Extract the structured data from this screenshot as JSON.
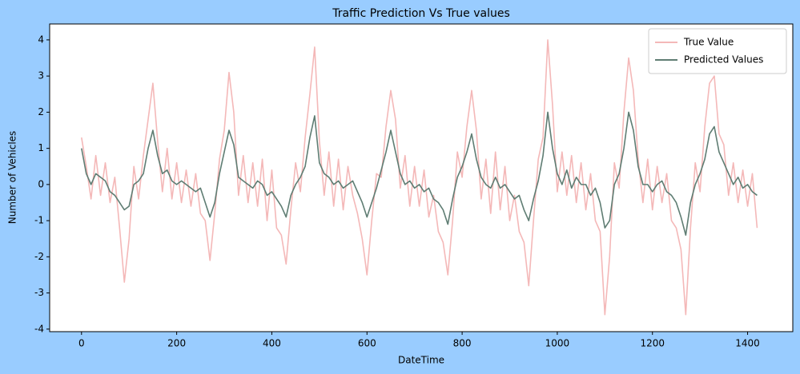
{
  "chart_data": {
    "type": "line",
    "title": "Traffic Prediction Vs True values",
    "x_label": "DateTime",
    "y_label": "Number of Vehicles",
    "x": [
      0,
      10,
      20,
      30,
      40,
      50,
      60,
      70,
      80,
      90,
      100,
      110,
      120,
      130,
      140,
      150,
      160,
      170,
      180,
      190,
      200,
      210,
      220,
      230,
      240,
      250,
      260,
      270,
      280,
      290,
      300,
      310,
      320,
      330,
      340,
      350,
      360,
      370,
      380,
      390,
      400,
      410,
      420,
      430,
      440,
      450,
      460,
      470,
      480,
      490,
      500,
      510,
      520,
      530,
      540,
      550,
      560,
      570,
      580,
      590,
      600,
      610,
      620,
      630,
      640,
      650,
      660,
      670,
      680,
      690,
      700,
      710,
      720,
      730,
      740,
      750,
      760,
      770,
      780,
      790,
      800,
      810,
      820,
      830,
      840,
      850,
      860,
      870,
      880,
      890,
      900,
      910,
      920,
      930,
      940,
      950,
      960,
      970,
      980,
      990,
      1000,
      1010,
      1020,
      1030,
      1040,
      1050,
      1060,
      1070,
      1080,
      1090,
      1100,
      1110,
      1120,
      1130,
      1140,
      1150,
      1160,
      1170,
      1180,
      1190,
      1200,
      1210,
      1220,
      1230,
      1240,
      1250,
      1260,
      1270,
      1280,
      1290,
      1300,
      1310,
      1320,
      1330,
      1340,
      1350,
      1360,
      1370,
      1380,
      1390,
      1400,
      1410,
      1420
    ],
    "series": [
      {
        "name": "True Value",
        "color": "#f4b8b8",
        "values": [
          1.3,
          0.5,
          -0.4,
          0.8,
          -0.3,
          0.6,
          -0.5,
          0.2,
          -1.2,
          -2.7,
          -1.5,
          0.5,
          -0.4,
          0.8,
          1.8,
          2.8,
          1.2,
          -0.2,
          1.0,
          -0.4,
          0.6,
          -0.5,
          0.4,
          -0.6,
          0.3,
          -0.8,
          -1.0,
          -2.1,
          -0.8,
          0.7,
          1.5,
          3.1,
          2.0,
          -0.3,
          0.8,
          -0.5,
          0.6,
          -0.6,
          0.7,
          -1.0,
          0.4,
          -1.2,
          -1.4,
          -2.2,
          -0.7,
          0.6,
          -0.2,
          1.3,
          2.5,
          3.8,
          1.2,
          -0.3,
          0.9,
          -0.6,
          0.7,
          -0.7,
          0.5,
          -0.3,
          -0.8,
          -1.5,
          -2.5,
          -1.0,
          0.3,
          0.2,
          1.6,
          2.6,
          1.8,
          -0.1,
          0.8,
          -0.6,
          0.5,
          -0.6,
          0.4,
          -0.9,
          -0.3,
          -1.3,
          -1.6,
          -2.5,
          -1.0,
          0.9,
          0.2,
          1.6,
          2.6,
          1.5,
          -0.4,
          0.7,
          -0.8,
          0.9,
          -0.7,
          0.5,
          -1.0,
          -0.3,
          -1.3,
          -1.6,
          -2.8,
          -1.0,
          0.7,
          1.3,
          4.0,
          2.2,
          -0.2,
          0.9,
          -0.3,
          0.8,
          -0.5,
          0.6,
          -0.7,
          0.3,
          -1.0,
          -1.3,
          -3.6,
          -2.0,
          0.6,
          -0.1,
          2.0,
          3.5,
          2.6,
          0.7,
          -0.5,
          0.7,
          -0.7,
          0.5,
          -0.5,
          0.3,
          -1.0,
          -1.2,
          -1.8,
          -3.6,
          -1.2,
          0.6,
          -0.2,
          1.6,
          2.8,
          3.0,
          1.4,
          1.1,
          -0.3,
          0.6,
          -0.5,
          0.4,
          -0.6,
          0.3,
          -1.2
        ]
      },
      {
        "name": "Predicted Values",
        "color": "#5f7d73",
        "values": [
          1.0,
          0.3,
          0.0,
          0.3,
          0.2,
          0.1,
          -0.2,
          -0.3,
          -0.5,
          -0.7,
          -0.6,
          0.0,
          0.1,
          0.3,
          1.0,
          1.5,
          0.8,
          0.3,
          0.4,
          0.1,
          0.0,
          0.1,
          0.0,
          -0.1,
          -0.2,
          -0.1,
          -0.5,
          -0.9,
          -0.5,
          0.3,
          0.9,
          1.5,
          1.1,
          0.2,
          0.1,
          0.0,
          -0.1,
          0.1,
          0.0,
          -0.3,
          -0.2,
          -0.4,
          -0.6,
          -0.9,
          -0.3,
          0.0,
          0.2,
          0.5,
          1.3,
          1.9,
          0.6,
          0.3,
          0.2,
          0.0,
          0.1,
          -0.1,
          0.0,
          0.1,
          -0.2,
          -0.5,
          -0.9,
          -0.5,
          -0.1,
          0.4,
          0.9,
          1.5,
          0.9,
          0.3,
          0.0,
          0.1,
          -0.1,
          0.0,
          -0.2,
          -0.1,
          -0.4,
          -0.5,
          -0.7,
          -1.1,
          -0.4,
          0.2,
          0.5,
          0.9,
          1.4,
          0.7,
          0.2,
          0.0,
          -0.1,
          0.2,
          -0.1,
          0.0,
          -0.2,
          -0.4,
          -0.3,
          -0.7,
          -1.0,
          -0.4,
          0.1,
          0.8,
          2.0,
          1.0,
          0.3,
          0.0,
          0.4,
          -0.1,
          0.2,
          0.0,
          0.0,
          -0.3,
          -0.1,
          -0.5,
          -1.2,
          -1.0,
          0.0,
          0.3,
          1.0,
          2.0,
          1.5,
          0.5,
          0.0,
          0.0,
          -0.2,
          0.0,
          0.1,
          -0.2,
          -0.3,
          -0.5,
          -0.9,
          -1.4,
          -0.5,
          0.0,
          0.3,
          0.7,
          1.4,
          1.6,
          0.9,
          0.6,
          0.3,
          0.0,
          0.2,
          -0.1,
          0.0,
          -0.2,
          -0.3
        ]
      }
    ],
    "xlim": [
      -67,
      1495
    ],
    "ylim": [
      -4.07,
      4.44
    ],
    "xticks": [
      0,
      200,
      400,
      600,
      800,
      1000,
      1200,
      1400
    ],
    "yticks": [
      -4,
      -3,
      -2,
      -1,
      0,
      1,
      2,
      3,
      4
    ],
    "legend": "upper right",
    "grid": false
  }
}
